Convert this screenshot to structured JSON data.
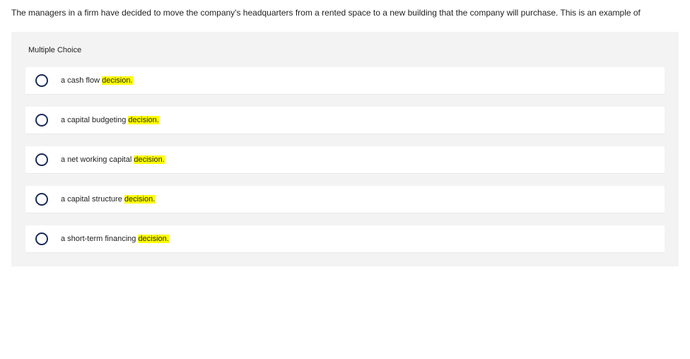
{
  "question": "The managers in a firm have decided to move the company's headquarters from a rented space to a new building that the company will purchase. This is an example of",
  "mc_label": "Multiple Choice",
  "highlight_color": "#ffff00",
  "options": [
    {
      "pre": "a cash flow ",
      "hl": "decision.",
      "post": ""
    },
    {
      "pre": "a capital budgeting ",
      "hl": "decision.",
      "post": ""
    },
    {
      "pre": "a net working capital ",
      "hl": "decision.",
      "post": ""
    },
    {
      "pre": "a capital structure ",
      "hl": "decision.",
      "post": ""
    },
    {
      "pre": "a short-term financing ",
      "hl": "decision.",
      "post": ""
    }
  ]
}
